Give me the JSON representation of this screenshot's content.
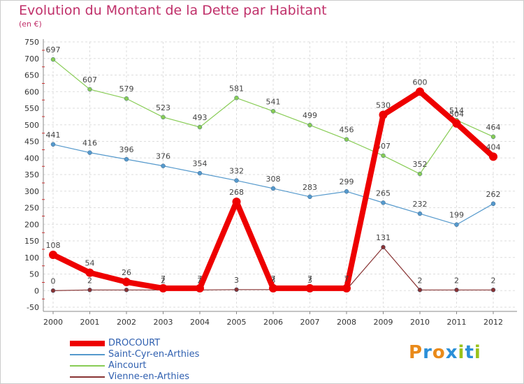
{
  "chart_data": {
    "type": "line",
    "title": "Evolution du Montant de la Dette par Habitant",
    "unit_label": "(en €)",
    "x": [
      "2000",
      "2001",
      "2002",
      "2003",
      "2004",
      "2005",
      "2006",
      "2007",
      "2008",
      "2009",
      "2010",
      "2011",
      "2012"
    ],
    "ylim": [
      -50,
      750
    ],
    "yticks": [
      -50,
      0,
      50,
      100,
      150,
      200,
      250,
      300,
      350,
      400,
      450,
      500,
      550,
      600,
      650,
      700,
      750
    ],
    "series": [
      {
        "name": "Aincourt",
        "color": "#88cc55",
        "values": [
          697,
          607,
          579,
          523,
          493,
          581,
          541,
          499,
          456,
          407,
          352,
          514,
          464
        ]
      },
      {
        "name": "Saint-Cyr-en-Arthies",
        "color": "#5599cc",
        "values": [
          441,
          416,
          396,
          376,
          354,
          332,
          308,
          283,
          299,
          265,
          232,
          199,
          262
        ]
      },
      {
        "name": "Vienne-en-Arthies",
        "color": "#883333",
        "values": [
          0,
          2,
          2,
          2,
          2,
          3,
          3,
          3,
          3,
          131,
          2,
          2,
          2
        ]
      },
      {
        "name": "DROCOURT",
        "color": "#ee0000",
        "values": [
          108,
          54,
          26,
          7,
          7,
          268,
          7,
          7,
          7,
          530,
          600,
          504,
          404
        ]
      }
    ],
    "legend_order": [
      "DROCOURT",
      "Saint-Cyr-en-Arthies",
      "Aincourt",
      "Vienne-en-Arthies"
    ]
  },
  "logo": {
    "text": "Proxiti",
    "letters": [
      "P",
      "r",
      "o",
      "x",
      "i",
      "t",
      "i"
    ],
    "colors": [
      "#e98a1a",
      "#2b8fd8",
      "#e98a1a",
      "#2b8fd8",
      "#9ac21a",
      "#2b8fd8",
      "#9ac21a"
    ]
  }
}
